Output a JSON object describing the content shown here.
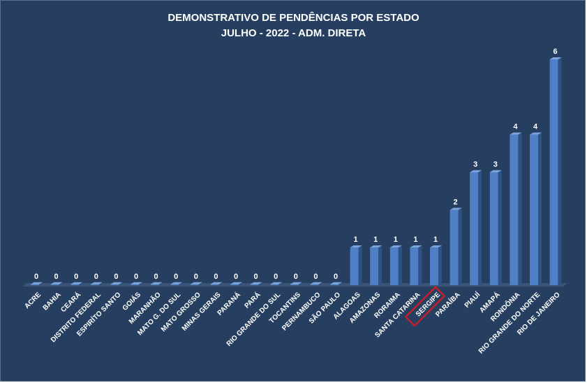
{
  "chart_data": {
    "type": "bar",
    "title": "DEMONSTRATIVO DE PENDÊNCIAS POR ESTADO",
    "subtitle": "JULHO - 2022 - ADM. DIRETA",
    "categories": [
      "ACRE",
      "BAHIA",
      "CEARÁ",
      "DISTRITO FEDERAL",
      "ESPIRÍTO SANTO",
      "GOIÁS",
      "MARANHÃO",
      "MATO G. DO SUL",
      "MATO GROSSO",
      "MINAS GERAIS",
      "PARANÁ",
      "PARÁ",
      "RIO GRANDE DO SUL",
      "TOCANTINS",
      "PERNAMBUCO",
      "SÃO PAULO",
      "ALAGOAS",
      "AMAZONAS",
      "RORAIMA",
      "SANTA CATARINA",
      "SERGIPE",
      "PARAÍBA",
      "PIAUÍ",
      "AMAPÁ",
      "RONDÔNIA",
      "RIO GRANDE DO NORTE",
      "RIO DE JANEIRO"
    ],
    "values": [
      0,
      0,
      0,
      0,
      0,
      0,
      0,
      0,
      0,
      0,
      0,
      0,
      0,
      0,
      0,
      0,
      1,
      1,
      1,
      1,
      1,
      2,
      3,
      3,
      4,
      4,
      6
    ],
    "highlighted_category": "SERGIPE",
    "ylim": [
      0,
      6
    ],
    "grid": false,
    "legend": "none",
    "xlabel": "",
    "ylabel": ""
  },
  "colors": {
    "background": "#263f60",
    "bar_front": "#4f7fc4",
    "bar_side": "#2e5186",
    "bar_top": "#7fa6dc",
    "floor": "#3a5478",
    "highlight": "#c0212a",
    "text": "#ffffff"
  }
}
